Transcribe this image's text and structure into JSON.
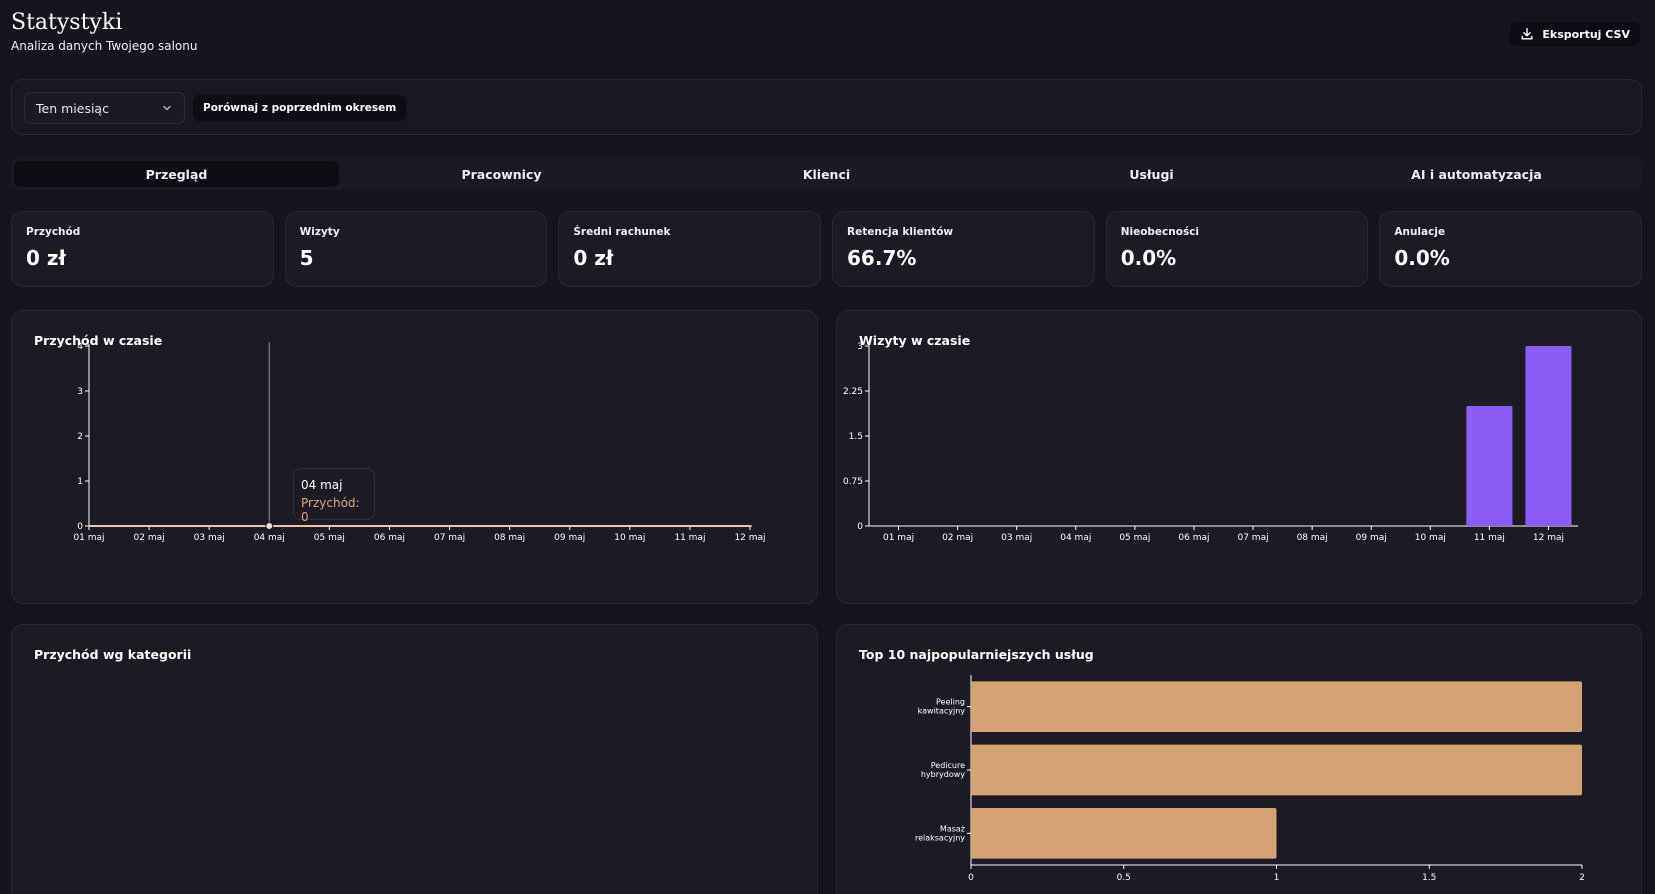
{
  "header": {
    "title": "Statystyki",
    "subtitle": "Analiza danych Twojego salonu",
    "export_label": "Eksportuj CSV"
  },
  "filters": {
    "period_value": "Ten miesiąc",
    "compare_label": "Porównaj z poprzednim okresem"
  },
  "tabs": [
    {
      "label": "Przegląd",
      "active": true
    },
    {
      "label": "Pracownicy",
      "active": false
    },
    {
      "label": "Klienci",
      "active": false
    },
    {
      "label": "Usługi",
      "active": false
    },
    {
      "label": "AI i automatyzacja",
      "active": false
    }
  ],
  "kpis": [
    {
      "label": "Przychód",
      "value": "0 zł"
    },
    {
      "label": "Wizyty",
      "value": "5"
    },
    {
      "label": "Średni rachunek",
      "value": "0 zł"
    },
    {
      "label": "Retencja klientów",
      "value": "66.7%"
    },
    {
      "label": "Nieobecności",
      "value": "0.0%"
    },
    {
      "label": "Anulacje",
      "value": "0.0%"
    }
  ],
  "panels": {
    "revenue_time_title": "Przychód w czasie",
    "visits_time_title": "Wizyty w czasie",
    "revenue_category_title": "Przychód wg kategorii",
    "top_services_title": "Top 10 najpopularniejszych usług"
  },
  "tooltip": {
    "date": "04 maj",
    "text": "Przychód: 0"
  },
  "colors": {
    "background": "#17141f",
    "panel": "#1d1a26",
    "revenue_line": "#e8c9b0",
    "visits_bar": "#8b5cf6",
    "services_bar": "#d4a373",
    "tooltip_value": "#d6a779"
  },
  "chart_data": [
    {
      "type": "line",
      "title": "Przychód w czasie",
      "x": [
        "01 maj",
        "02 maj",
        "03 maj",
        "04 maj",
        "05 maj",
        "06 maj",
        "07 maj",
        "08 maj",
        "09 maj",
        "10 maj",
        "11 maj",
        "12 maj"
      ],
      "series": [
        {
          "name": "Przychód",
          "values": [
            0,
            0,
            0,
            0,
            0,
            0,
            0,
            0,
            0,
            0,
            0,
            0
          ]
        }
      ],
      "yticks": [
        "0",
        "1",
        "2",
        "3",
        "4"
      ],
      "ylim": [
        0,
        4
      ],
      "highlight": "04 maj"
    },
    {
      "type": "bar",
      "title": "Wizyty w czasie",
      "categories": [
        "01 maj",
        "02 maj",
        "03 maj",
        "04 maj",
        "05 maj",
        "06 maj",
        "07 maj",
        "08 maj",
        "09 maj",
        "10 maj",
        "11 maj",
        "12 maj"
      ],
      "values": [
        0,
        0,
        0,
        0,
        0,
        0,
        0,
        0,
        0,
        0,
        2,
        3
      ],
      "yticks": [
        "0",
        "0.75",
        "1.5",
        "2.25",
        "3"
      ],
      "ylim": [
        0,
        3
      ]
    },
    {
      "type": "bar",
      "orientation": "horizontal",
      "title": "Top 10 najpopularniejszych usług",
      "categories": [
        [
          "Peeling",
          "kawitacyjny"
        ],
        [
          "Pedicure",
          "hybrydowy"
        ],
        [
          "Masaż",
          "relaksacyjny"
        ]
      ],
      "values": [
        2,
        2,
        1
      ],
      "xticks": [
        "0",
        "0.5",
        "1",
        "1.5",
        "2"
      ],
      "xlim": [
        0,
        2
      ]
    }
  ]
}
